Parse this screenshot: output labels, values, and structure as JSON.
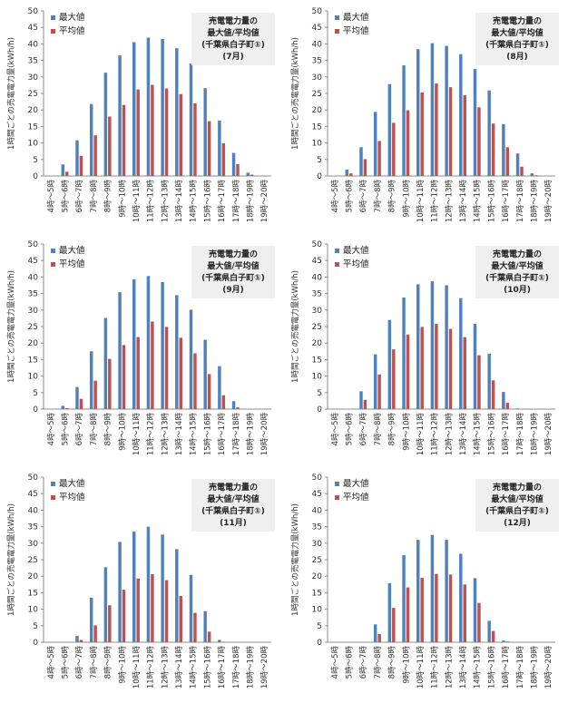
{
  "chart_data": [
    {
      "type": "bar",
      "title": "売電電力量の 最大値/平均値 (千葉県白子町①) (7月)",
      "title_lines": [
        "売電電力量の",
        "最大値/平均値",
        "(千葉県白子町①)",
        "(7月)"
      ],
      "ylabel": "1時間ごとの売電電力量(kWh/h)",
      "ylim": [
        0,
        50
      ],
      "yticks": [
        0,
        5,
        10,
        15,
        20,
        25,
        30,
        35,
        40,
        45,
        50
      ],
      "grid": false,
      "legend": "top-left",
      "categories": [
        "4時～5時",
        "5時～6時",
        "6時～7時",
        "7時～8時",
        "8時～9時",
        "9時～10時",
        "10時～11時",
        "11時～12時",
        "12時～13時",
        "13時～14時",
        "14時～15時",
        "15時～16時",
        "16時～17時",
        "17時～18時",
        "18時～19時",
        "19時～20時"
      ],
      "series": [
        {
          "name": "最大値",
          "color": "#4f81bd",
          "values": [
            0,
            3.5,
            10.8,
            21.8,
            31.3,
            36.5,
            40.5,
            41.9,
            41.5,
            38.7,
            34.1,
            26.6,
            16.8,
            7.0,
            1.0,
            0
          ]
        },
        {
          "name": "平均値",
          "color": "#c0504d",
          "values": [
            0,
            1.3,
            6.1,
            12.3,
            18.0,
            21.5,
            26.2,
            27.6,
            26.5,
            24.8,
            22.0,
            16.6,
            9.9,
            3.6,
            0.4,
            0
          ]
        }
      ]
    },
    {
      "type": "bar",
      "title": "売電電力量の 最大値/平均値 (千葉県白子町①) (8月)",
      "title_lines": [
        "売電電力量の",
        "最大値/平均値",
        "(千葉県白子町①)",
        "(8月)"
      ],
      "ylabel": "1時間ごとの売電電力量(kWh/h)",
      "ylim": [
        0,
        50
      ],
      "yticks": [
        0,
        5,
        10,
        15,
        20,
        25,
        30,
        35,
        40,
        45,
        50
      ],
      "grid": false,
      "legend": "top-left",
      "categories": [
        "4時～5時",
        "5時～6時",
        "6時～7時",
        "7時～8時",
        "8時～9時",
        "9時～10時",
        "10時～11時",
        "11時～12時",
        "12時～13時",
        "13時～14時",
        "14時～15時",
        "15時～16時",
        "16時～17時",
        "17時～18時",
        "18時～19時",
        "19時～20時"
      ],
      "series": [
        {
          "name": "最大値",
          "color": "#4f81bd",
          "values": [
            0,
            1.9,
            8.7,
            19.4,
            27.8,
            33.5,
            38.4,
            40.2,
            39.4,
            36.9,
            32.4,
            25.9,
            15.7,
            6.8,
            0.8,
            0
          ]
        },
        {
          "name": "平均値",
          "color": "#c0504d",
          "values": [
            0,
            0.8,
            5.1,
            10.6,
            16.1,
            19.9,
            25.3,
            28.0,
            26.9,
            24.5,
            20.8,
            15.9,
            8.7,
            2.8,
            0.2,
            0
          ]
        }
      ]
    },
    {
      "type": "bar",
      "title": "売電電力量の 最大値/平均値 (千葉県白子町①) (9月)",
      "title_lines": [
        "売電電力量の",
        "最大値/平均値",
        "(千葉県白子町①)",
        "(9月)"
      ],
      "ylabel": "1時間ごとの売電電力量(kWh/h)",
      "ylim": [
        0,
        50
      ],
      "yticks": [
        0,
        5,
        10,
        15,
        20,
        25,
        30,
        35,
        40,
        45,
        50
      ],
      "grid": false,
      "legend": "top-left",
      "categories": [
        "4時～5時",
        "5時～6時",
        "6時～7時",
        "7時～8時",
        "8時～9時",
        "9時～10時",
        "10時～11時",
        "11時～12時",
        "12時～13時",
        "13時～14時",
        "14時～15時",
        "15時～16時",
        "16時～17時",
        "17時～18時",
        "18時～19時",
        "19時～20時"
      ],
      "series": [
        {
          "name": "最大値",
          "color": "#4f81bd",
          "values": [
            0,
            1.0,
            6.7,
            17.5,
            27.6,
            35.4,
            39.3,
            40.3,
            38.5,
            34.5,
            30.1,
            21.0,
            13.0,
            2.4,
            0,
            0
          ]
        },
        {
          "name": "平均値",
          "color": "#c0504d",
          "values": [
            0,
            0.3,
            3.1,
            8.6,
            15.2,
            19.4,
            21.8,
            26.5,
            24.9,
            21.6,
            16.9,
            10.6,
            4.2,
            0.5,
            0,
            0
          ]
        }
      ]
    },
    {
      "type": "bar",
      "title": "売電電力量の 最大値/平均値 (千葉県白子町①) (10月)",
      "title_lines": [
        "売電電力量の",
        "最大値/平均値",
        "(千葉県白子町①)",
        "(10月)"
      ],
      "ylabel": "1時間ごとの売電電力量(kWh/h)",
      "ylim": [
        0,
        50
      ],
      "yticks": [
        0,
        5,
        10,
        15,
        20,
        25,
        30,
        35,
        40,
        45,
        50
      ],
      "grid": false,
      "legend": "top-left",
      "categories": [
        "4時～5時",
        "5時～6時",
        "6時～7時",
        "7時～8時",
        "8時～9時",
        "9時～10時",
        "10時～11時",
        "11時～12時",
        "12時～13時",
        "13時～14時",
        "14時～15時",
        "15時～16時",
        "16時～17時",
        "17時～18時",
        "18時～19時",
        "19時～20時"
      ],
      "series": [
        {
          "name": "最大値",
          "color": "#4f81bd",
          "values": [
            0,
            0,
            5.4,
            16.6,
            27.0,
            33.8,
            37.8,
            38.7,
            37.5,
            33.6,
            25.8,
            16.8,
            5.2,
            0.2,
            0,
            0
          ]
        },
        {
          "name": "平均値",
          "color": "#c0504d",
          "values": [
            0,
            0,
            2.8,
            10.5,
            18.1,
            22.6,
            24.9,
            25.8,
            24.3,
            21.8,
            16.3,
            8.7,
            1.9,
            0,
            0,
            0
          ]
        }
      ]
    },
    {
      "type": "bar",
      "title": "売電電力量の 最大値/平均値 (千葉県白子町①) (11月)",
      "title_lines": [
        "売電電力量の",
        "最大値/平均値",
        "(千葉県白子町①)",
        "(11月)"
      ],
      "ylabel": "1時間ごとの売電電力量(kWh/h)",
      "ylim": [
        0,
        50
      ],
      "yticks": [
        0,
        5,
        10,
        15,
        20,
        25,
        30,
        35,
        40,
        45,
        50
      ],
      "grid": false,
      "legend": "top-left",
      "categories": [
        "4時～5時",
        "5時～6時",
        "6時～7時",
        "7時～8時",
        "8時～9時",
        "9時～10時",
        "10時～11時",
        "11時～12時",
        "12時～13時",
        "13時～14時",
        "14時～15時",
        "15時～16時",
        "16時～17時",
        "17時～18時",
        "18時～19時",
        "19時～20時"
      ],
      "series": [
        {
          "name": "最大値",
          "color": "#4f81bd",
          "values": [
            0,
            0,
            1.9,
            13.5,
            22.7,
            30.4,
            33.5,
            35.0,
            32.6,
            28.2,
            20.4,
            9.4,
            0.7,
            0,
            0,
            0
          ]
        },
        {
          "name": "平均値",
          "color": "#c0504d",
          "values": [
            0,
            0,
            0.7,
            5.1,
            11.2,
            15.9,
            19.3,
            20.6,
            18.8,
            14.0,
            8.9,
            3.2,
            0.1,
            0,
            0,
            0
          ]
        }
      ]
    },
    {
      "type": "bar",
      "title": "売電電力量の 最大値/平均値 (千葉県白子町①) (12月)",
      "title_lines": [
        "売電電力量の",
        "最大値/平均値",
        "(千葉県白子町①)",
        "(12月)"
      ],
      "ylabel": "1時間ごとの売電電力量(kWh/h)",
      "ylim": [
        0,
        50
      ],
      "yticks": [
        0,
        5,
        10,
        15,
        20,
        25,
        30,
        35,
        40,
        45,
        50
      ],
      "grid": false,
      "legend": "top-left",
      "categories": [
        "4時～5時",
        "5時～6時",
        "6時～7時",
        "7時～8時",
        "8時～9時",
        "9時～10時",
        "10時～11時",
        "11時～12時",
        "12時～13時",
        "13時～14時",
        "14時～15時",
        "15時～16時",
        "16時～17時",
        "17時～18時",
        "18時～19時",
        "19時～20時"
      ],
      "series": [
        {
          "name": "最大値",
          "color": "#4f81bd",
          "values": [
            0,
            0,
            0,
            5.4,
            17.9,
            26.4,
            31.0,
            32.5,
            31.0,
            26.8,
            19.4,
            6.5,
            0.5,
            0,
            0,
            0
          ]
        },
        {
          "name": "平均値",
          "color": "#c0504d",
          "values": [
            0,
            0,
            0,
            2.5,
            10.4,
            16.6,
            19.5,
            20.7,
            20.5,
            17.5,
            11.9,
            3.4,
            0.2,
            0,
            0,
            0
          ]
        }
      ]
    }
  ]
}
